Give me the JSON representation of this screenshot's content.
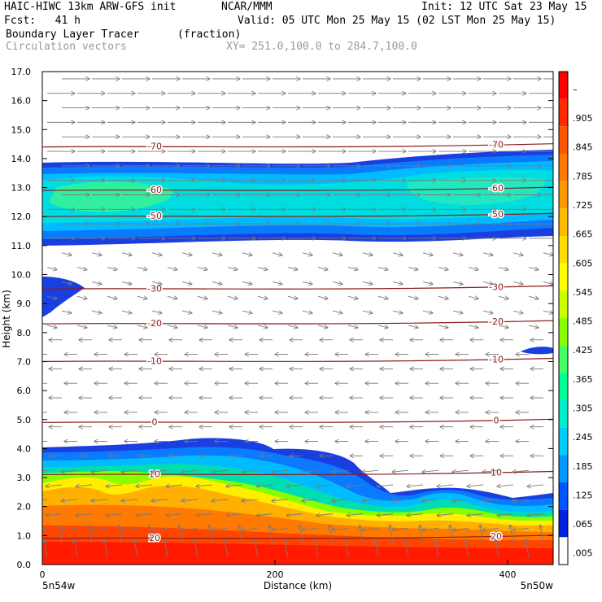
{
  "header": {
    "model": "HAIC-HIWC 13km ARW-GFS init",
    "org": "NCAR/MMM",
    "init": "Init: 12 UTC Sat 23 May 15",
    "fcst": "Fcst:   41 h",
    "valid": "Valid: 05 UTC Mon 25 May 15 (02 LST Mon 25 May 15)",
    "field": "Boundary Layer Tracer",
    "units": "(fraction)",
    "vectors": "Circulation vectors",
    "xy": "XY= 251.0,100.0 to 284.7,100.0"
  },
  "chart_data": {
    "type": "heatmap",
    "title": "Boundary Layer Tracer",
    "ylabel": "Height (km)",
    "xlabel": "Distance (km)",
    "x_ticks": [
      "0",
      "200",
      "400"
    ],
    "x_endpoints": [
      "5n54w",
      "5n50w"
    ],
    "ylim": [
      0,
      17
    ],
    "y_ticks": [
      "0.0",
      "1.0",
      "2.0",
      "3.0",
      "4.0",
      "5.0",
      "6.0",
      "7.0",
      "8.0",
      "9.0",
      "10.0",
      "11.0",
      "12.0",
      "13.0",
      "14.0",
      "15.0",
      "16.0",
      "17.0"
    ],
    "colorbar_labels": [
      "–",
      ".905",
      ".845",
      ".785",
      ".725",
      ".665",
      ".605",
      ".545",
      ".485",
      ".425",
      ".365",
      ".305",
      ".245",
      ".185",
      ".125",
      ".065",
      ".005"
    ],
    "colorbar_colors": [
      "#ff0000",
      "#ff2a00",
      "#ff5500",
      "#ff7a00",
      "#ff9900",
      "#ffbb00",
      "#ffdd00",
      "#ffff00",
      "#ccff00",
      "#88ff00",
      "#44ff66",
      "#00ff99",
      "#00eecc",
      "#00ccff",
      "#0099ff",
      "#0055ff",
      "#0022dd",
      "#ffffff"
    ],
    "temperature_contours": [
      {
        "label": "-70",
        "height_km": 14.4
      },
      {
        "label": "-60",
        "height_km": 12.9
      },
      {
        "label": "-50",
        "height_km": 12.0
      },
      {
        "label": "-30",
        "height_km": 9.5
      },
      {
        "label": "-20",
        "height_km": 8.3
      },
      {
        "label": "-10",
        "height_km": 7.0
      },
      {
        "label": "0",
        "height_km": 4.9
      },
      {
        "label": "10",
        "height_km": 3.1
      },
      {
        "label": "20",
        "height_km": 0.9
      }
    ],
    "grid": false
  },
  "colors": {
    "contour": "#8b1a1a",
    "vector": "#7a7a7a"
  }
}
